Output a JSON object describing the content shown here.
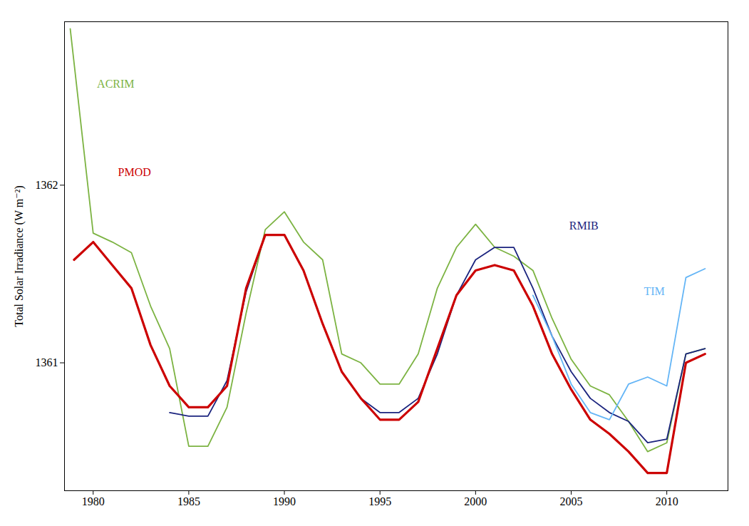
{
  "chart_data": {
    "type": "line",
    "ylabel": "Total Solar Irradiance (W m⁻²)",
    "xlim": [
      1978.5,
      2013.2
    ],
    "ylim": [
      1360.28,
      1362.92
    ],
    "xticks": [
      1980,
      1985,
      1990,
      1995,
      2000,
      2005,
      2010
    ],
    "yticks": [
      1361,
      1362
    ],
    "grid": false,
    "series": [
      {
        "name": "ACRIM",
        "color": "#7cb342",
        "x": [
          1978.8,
          1980,
          1981,
          1982,
          1983,
          1984,
          1985,
          1986,
          1987,
          1988,
          1989,
          1990,
          1991,
          1992,
          1993,
          1994,
          1995,
          1996,
          1997,
          1998,
          1999,
          2000,
          2001,
          2002,
          2003,
          2004,
          2005,
          2006,
          2007,
          2008,
          2009,
          2010,
          2011,
          2012
        ],
        "values": [
          1362.88,
          1361.73,
          1361.68,
          1361.62,
          1361.32,
          1361.08,
          1360.53,
          1360.53,
          1360.75,
          1361.28,
          1361.75,
          1361.85,
          1361.68,
          1361.58,
          1361.05,
          1361.0,
          1360.88,
          1360.88,
          1361.05,
          1361.42,
          1361.65,
          1361.78,
          1361.65,
          1361.6,
          1361.52,
          1361.25,
          1361.02,
          1360.87,
          1360.82,
          1360.67,
          1360.5,
          1360.55,
          1361.05,
          1361.08
        ]
      },
      {
        "name": "RMIB",
        "color": "#1a237e",
        "x": [
          1984,
          1985,
          1986,
          1987,
          1988,
          1989,
          1990,
          1991,
          1992,
          1993,
          1994,
          1995,
          1996,
          1997,
          1998,
          1999,
          2000,
          2001,
          2002,
          2003,
          2004,
          2005,
          2006,
          2007,
          2008,
          2009,
          2010,
          2011,
          2012
        ],
        "values": [
          1360.72,
          1360.7,
          1360.7,
          1360.9,
          1361.4,
          1361.72,
          1361.72,
          1361.52,
          1361.22,
          1360.95,
          1360.8,
          1360.72,
          1360.72,
          1360.8,
          1361.05,
          1361.38,
          1361.58,
          1361.65,
          1361.65,
          1361.42,
          1361.15,
          1360.95,
          1360.8,
          1360.72,
          1360.67,
          1360.55,
          1360.57,
          1361.05,
          1361.08
        ]
      },
      {
        "name": "PMOD",
        "color": "#cc0000",
        "x": [
          1979,
          1980,
          1981,
          1982,
          1983,
          1984,
          1985,
          1986,
          1987,
          1988,
          1989,
          1990,
          1991,
          1992,
          1993,
          1994,
          1995,
          1996,
          1997,
          1998,
          1999,
          2000,
          2001,
          2002,
          2003,
          2004,
          2005,
          2006,
          2007,
          2008,
          2009,
          2010,
          2011,
          2012
        ],
        "values": [
          1361.58,
          1361.68,
          1361.55,
          1361.42,
          1361.1,
          1360.87,
          1360.75,
          1360.75,
          1360.87,
          1361.42,
          1361.72,
          1361.72,
          1361.52,
          1361.22,
          1360.95,
          1360.8,
          1360.68,
          1360.68,
          1360.78,
          1361.08,
          1361.38,
          1361.52,
          1361.55,
          1361.52,
          1361.32,
          1361.05,
          1360.85,
          1360.68,
          1360.6,
          1360.5,
          1360.38,
          1360.38,
          1361.0,
          1361.05
        ]
      },
      {
        "name": "TIM",
        "color": "#64b5f6",
        "x": [
          2003,
          2004,
          2005,
          2006,
          2007,
          2008,
          2009,
          2010,
          2011,
          2012
        ],
        "values": [
          1361.38,
          1361.15,
          1360.88,
          1360.72,
          1360.68,
          1360.88,
          1360.92,
          1360.87,
          1361.48,
          1361.53
        ]
      }
    ],
    "annotations": [
      {
        "text": "ACRIM",
        "x": 1980.2,
        "y": 1362.55,
        "color": "#7cb342"
      },
      {
        "text": "PMOD",
        "x": 1981.3,
        "y": 1362.05,
        "color": "#cc0000"
      },
      {
        "text": "RMIB",
        "x": 2004.9,
        "y": 1361.75,
        "color": "#1a237e"
      },
      {
        "text": "TIM",
        "x": 2008.8,
        "y": 1361.38,
        "color": "#64b5f6"
      }
    ]
  }
}
